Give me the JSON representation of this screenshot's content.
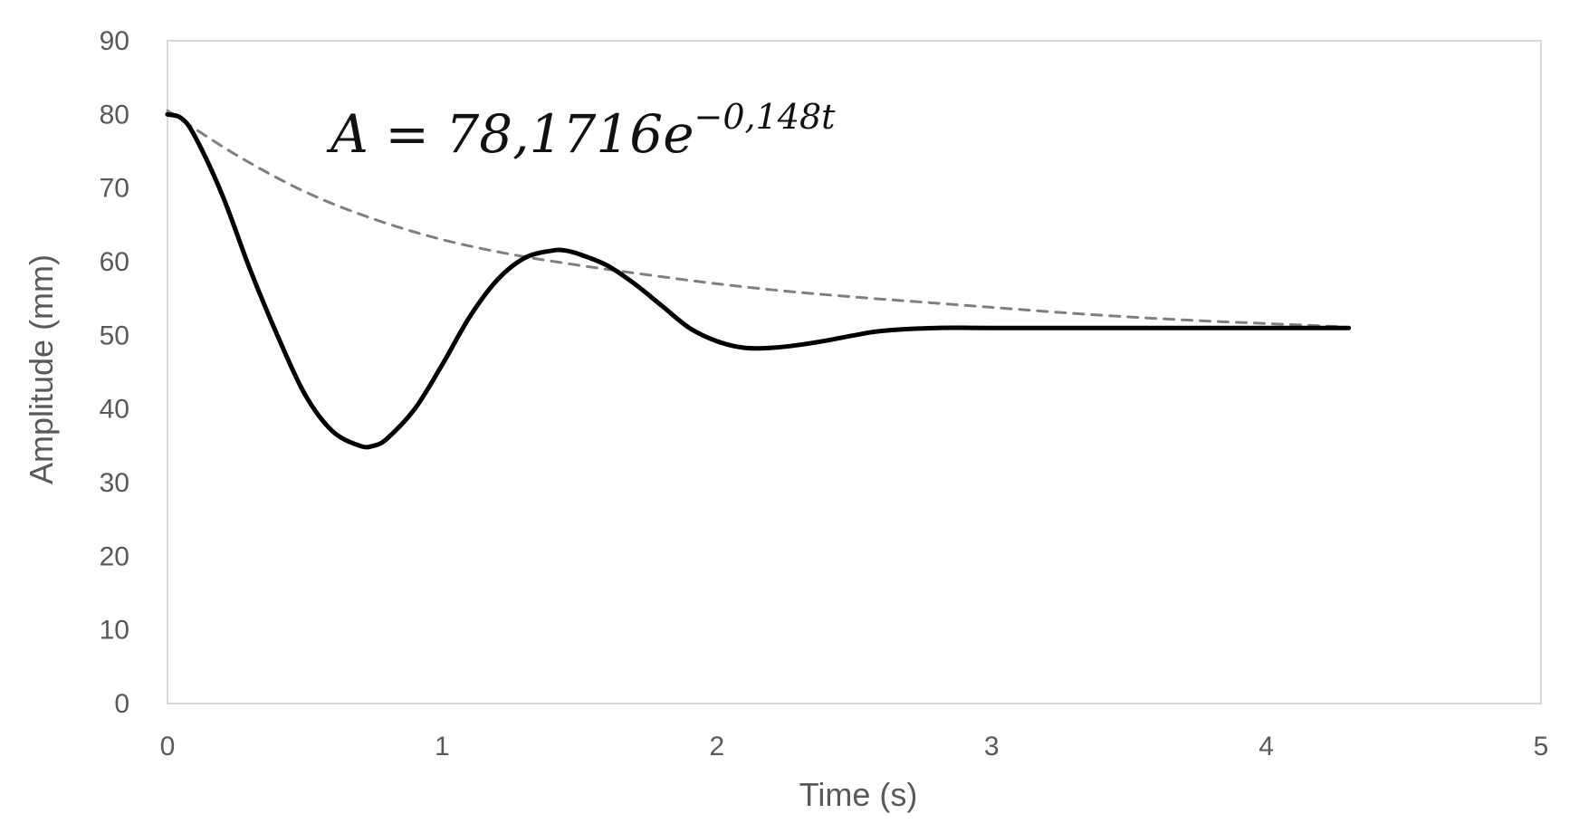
{
  "chart_data": {
    "type": "line",
    "title": "",
    "xlabel": "Time (s)",
    "ylabel": "Amplitude (mm)",
    "xlim": [
      0,
      5
    ],
    "ylim": [
      0,
      90
    ],
    "x_ticks": [
      "0",
      "1",
      "2",
      "3",
      "4",
      "5"
    ],
    "y_ticks": [
      "0",
      "10",
      "20",
      "30",
      "40",
      "50",
      "60",
      "70",
      "80",
      "90"
    ],
    "grid": false,
    "legend": "none",
    "annotation": "A = 78,1716e^{−0,148t}",
    "annotation_parts": {
      "main": "A = 78,1716",
      "base": "e",
      "exponent": "−0,148t"
    },
    "series": [
      {
        "style": "solid",
        "color": "#000000",
        "x": [
          0,
          0.05,
          0.1,
          0.2,
          0.3,
          0.4,
          0.5,
          0.6,
          0.7,
          0.75,
          0.8,
          0.9,
          1.0,
          1.1,
          1.2,
          1.3,
          1.4,
          1.45,
          1.5,
          1.6,
          1.7,
          1.8,
          1.9,
          2.0,
          2.1,
          2.2,
          2.3,
          2.4,
          2.5,
          2.6,
          2.8,
          3.0,
          3.5,
          4.0,
          4.3
        ],
        "y": [
          80,
          79.5,
          77,
          69,
          59,
          50,
          42,
          37,
          35,
          35,
          36,
          40,
          46,
          52.5,
          57.5,
          60.5,
          61.5,
          61.5,
          61,
          59.5,
          57,
          54,
          51,
          49.2,
          48.3,
          48.3,
          48.7,
          49.3,
          50,
          50.6,
          51,
          51,
          51,
          51,
          51
        ]
      },
      {
        "style": "dashed",
        "color": "#7f7f7f",
        "x": [
          0,
          0.25,
          0.5,
          0.75,
          1.0,
          1.25,
          1.5,
          1.75,
          2.0,
          2.25,
          2.5,
          2.75,
          3.0,
          3.25,
          3.5,
          3.75,
          4.0,
          4.25,
          4.3
        ],
        "y": [
          80.5,
          74.5,
          69.5,
          65.8,
          63,
          61,
          59.5,
          58.2,
          57,
          56,
          55.2,
          54.5,
          53.8,
          53.1,
          52.5,
          52,
          51.6,
          51.2,
          51
        ]
      }
    ]
  }
}
